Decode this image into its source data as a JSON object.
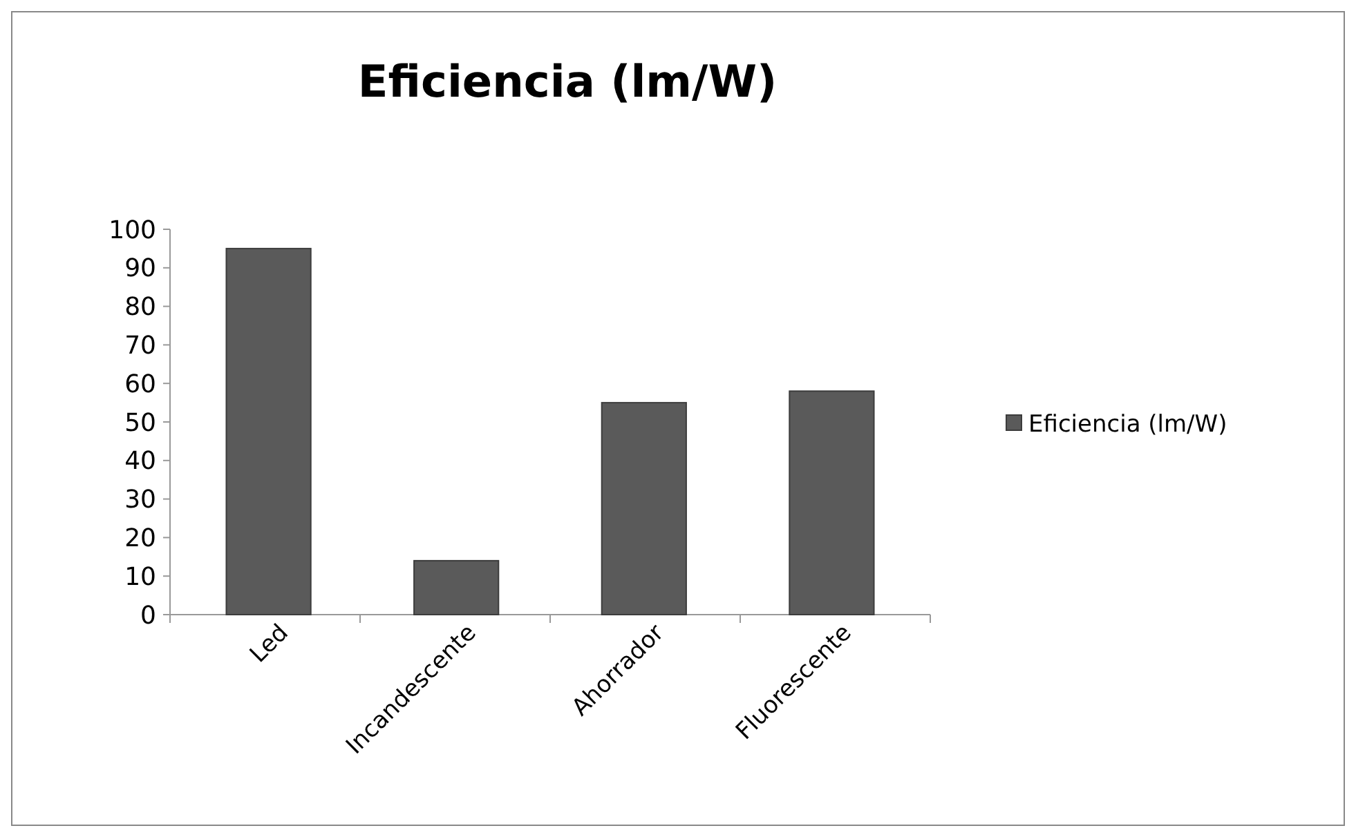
{
  "chart_data": {
    "type": "bar",
    "title": "Eficiencia (lm/W)",
    "categories": [
      "Led",
      "Incandescente",
      "Ahorrador",
      "Fluorescente"
    ],
    "series": [
      {
        "name": "Eficiencia (lm/W)",
        "color": "#5a5a5a",
        "values": [
          95,
          14,
          55,
          58
        ]
      }
    ],
    "ylim": [
      0,
      100
    ],
    "yticks": [
      0,
      10,
      20,
      30,
      40,
      50,
      60,
      70,
      80,
      90,
      100
    ],
    "grid": false,
    "legend": "right"
  }
}
